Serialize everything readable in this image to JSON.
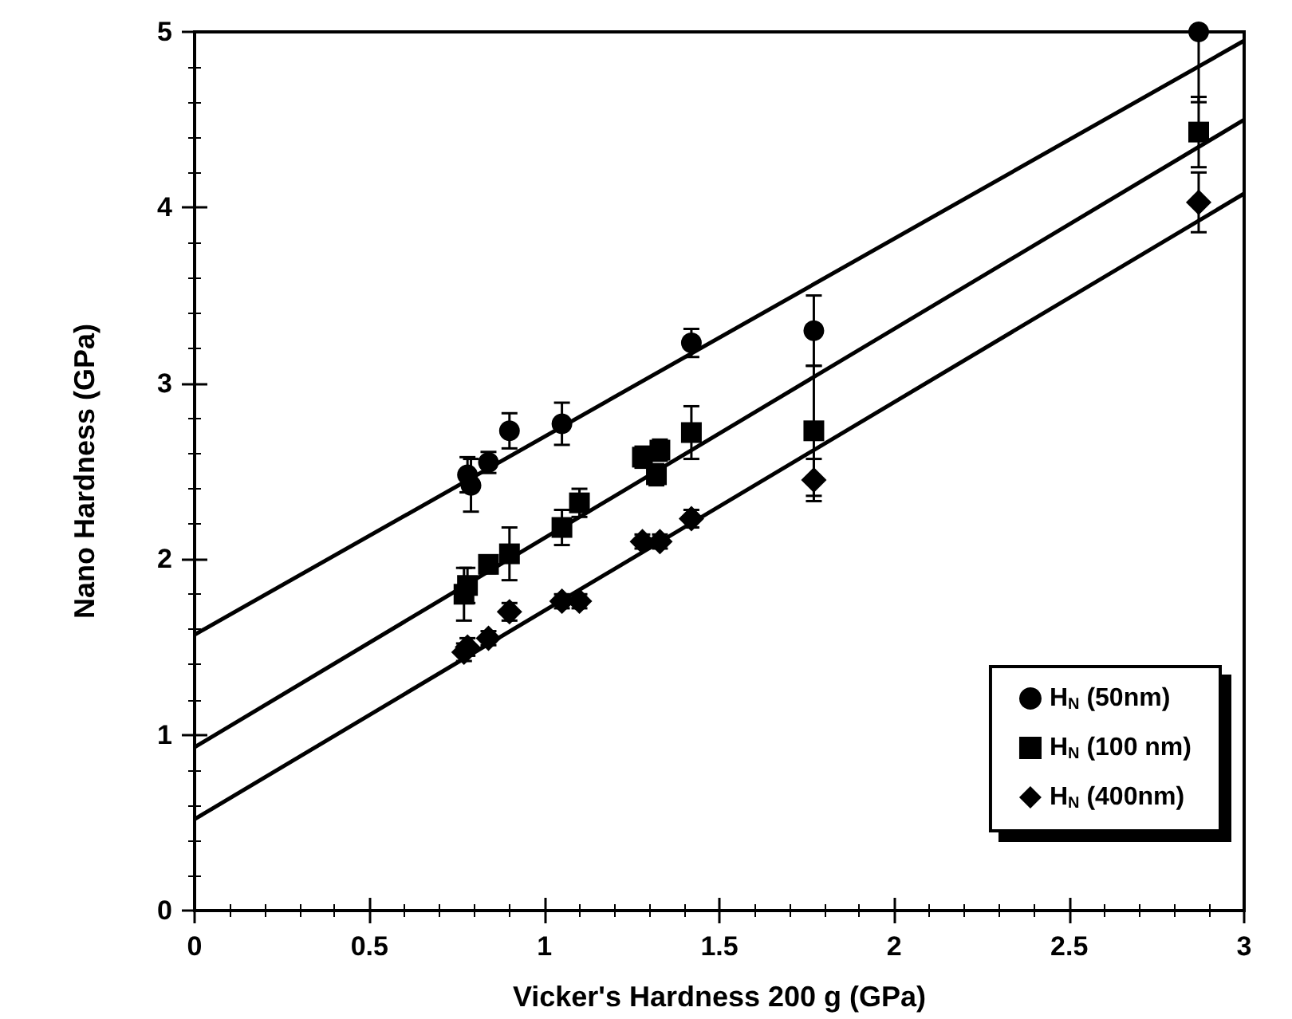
{
  "chart_data": {
    "type": "scatter",
    "xlabel": "Vicker's Hardness 200 g (GPa)",
    "ylabel": "Nano Hardness (GPa)",
    "xlim": [
      0,
      3
    ],
    "ylim": [
      0,
      5
    ],
    "xticks": [
      0,
      0.5,
      1,
      1.5,
      2,
      2.5,
      3
    ],
    "yticks": [
      0,
      1,
      2,
      3,
      4,
      5
    ],
    "grid": false,
    "legend": "bottom right",
    "series": [
      {
        "name": "H$_{N}$ (50nm)",
        "color": "#000000",
        "marker": "circle",
        "x": [
          0.78,
          0.79,
          0.84,
          0.9,
          1.05,
          1.42,
          1.77,
          2.87
        ],
        "values": [
          2.48,
          2.42,
          2.55,
          2.73,
          2.77,
          3.23,
          3.3,
          5.0
        ],
        "errors": [
          0.1,
          0.15,
          0.06,
          0.1,
          0.12,
          0.08,
          0.2,
          [
            4.6,
            5
          ]
        ]
      },
      {
        "name": "H$_{N}$ (100 nm)",
        "color": "#000000",
        "marker": "square",
        "x": [
          0.77,
          0.78,
          0.84,
          0.9,
          1.05,
          1.1,
          1.28,
          1.32,
          1.33,
          1.42,
          1.77,
          2.87
        ],
        "values": [
          1.8,
          1.85,
          1.97,
          2.03,
          2.18,
          2.32,
          2.58,
          2.48,
          2.62,
          2.72,
          2.73,
          4.43
        ],
        "errors": [
          0.15,
          0.1,
          0.05,
          0.15,
          0.1,
          0.08,
          0.06,
          0.06,
          0.06,
          0.15,
          0.37,
          0.2
        ]
      },
      {
        "name": "H$_{N}$ (400nm)",
        "color": "#000000",
        "marker": "diamond",
        "x": [
          0.77,
          0.78,
          0.84,
          0.9,
          1.05,
          1.1,
          1.28,
          1.33,
          1.42,
          1.77,
          2.87
        ],
        "values": [
          1.47,
          1.5,
          1.55,
          1.7,
          1.76,
          1.76,
          2.1,
          2.1,
          2.23,
          2.45,
          4.03
        ],
        "errors": [
          0.05,
          0.05,
          0.04,
          0.05,
          0.04,
          0.04,
          0.04,
          0.04,
          0.05,
          0.12,
          0.17
        ]
      },
      {
        "type": "line",
        "color": "#000000",
        "marker": "none",
        "x": [
          0,
          3
        ],
        "values": [
          1.57,
          4.95
        ]
      },
      {
        "type": "line",
        "color": "#000000",
        "marker": "none",
        "x": [
          0,
          3
        ],
        "values": [
          0.93,
          4.5
        ]
      },
      {
        "type": "line",
        "color": "#000000",
        "marker": "none",
        "x": [
          0,
          3
        ],
        "values": [
          0.52,
          4.08
        ]
      }
    ]
  }
}
